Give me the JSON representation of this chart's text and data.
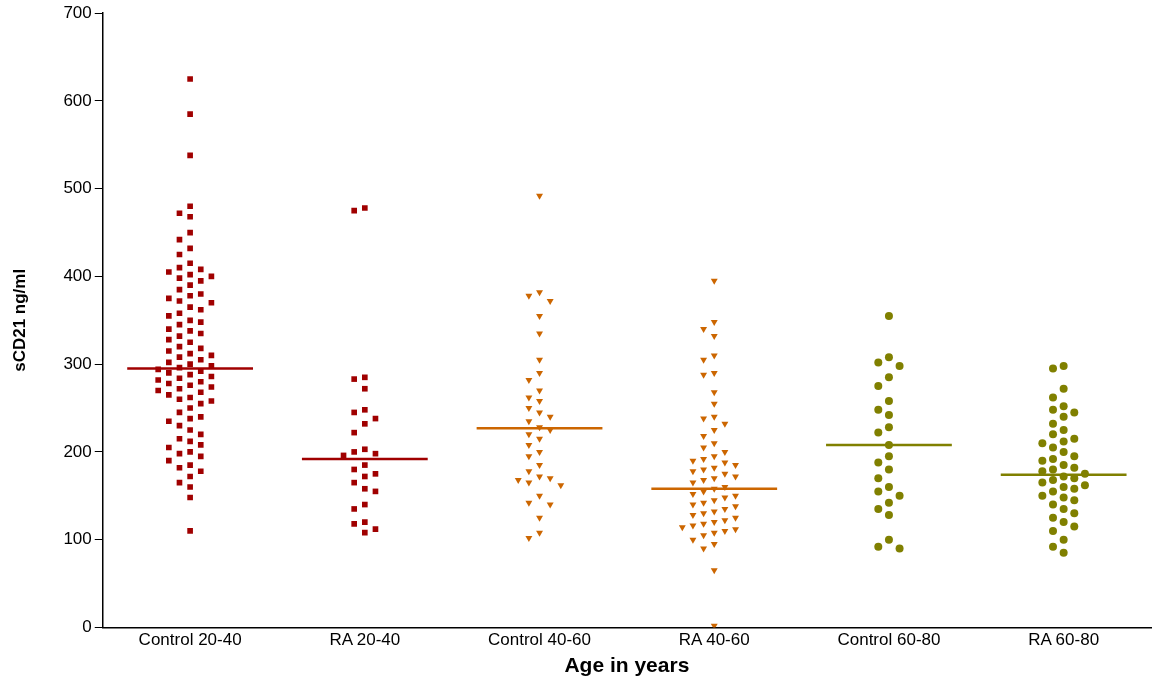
{
  "chart_data": {
    "type": "scatter",
    "xlabel": "Age in years",
    "ylabel": "sCD21 ng/ml",
    "categories": [
      "Control 20-40",
      "RA 20-40",
      "Control 40-60",
      "RA 40-60",
      "Control 60-80",
      "RA 60-80"
    ],
    "ylim": [
      0,
      700
    ],
    "yticks": [
      0,
      100,
      200,
      300,
      400,
      500,
      600,
      700
    ],
    "grid": false,
    "legend": false,
    "series": [
      {
        "color": "#a00000",
        "marker": "square",
        "x": [
          "Control 20-40",
          "Control 20-40",
          "Control 20-40",
          "Control 20-40",
          "Control 20-40",
          "Control 20-40",
          "Control 20-40",
          "Control 20-40",
          "Control 20-40",
          "Control 20-40",
          "Control 20-40",
          "Control 20-40",
          "Control 20-40",
          "Control 20-40",
          "Control 20-40",
          "Control 20-40",
          "Control 20-40",
          "Control 20-40",
          "Control 20-40",
          "Control 20-40",
          "Control 20-40",
          "Control 20-40",
          "Control 20-40",
          "Control 20-40",
          "Control 20-40",
          "Control 20-40",
          "Control 20-40",
          "Control 20-40",
          "Control 20-40",
          "Control 20-40",
          "Control 20-40",
          "Control 20-40",
          "Control 20-40",
          "Control 20-40",
          "Control 20-40",
          "Control 20-40",
          "Control 20-40",
          "Control 20-40",
          "Control 20-40",
          "Control 20-40",
          "Control 20-40",
          "Control 20-40",
          "Control 20-40",
          "Control 20-40",
          "Control 20-40",
          "Control 20-40",
          "Control 20-40",
          "Control 20-40",
          "Control 20-40",
          "Control 20-40",
          "Control 20-40",
          "Control 20-40",
          "Control 20-40",
          "Control 20-40",
          "Control 20-40",
          "Control 20-40",
          "Control 20-40",
          "Control 20-40",
          "Control 20-40",
          "Control 20-40",
          "Control 20-40",
          "Control 20-40",
          "Control 20-40",
          "Control 20-40",
          "Control 20-40",
          "Control 20-40",
          "Control 20-40",
          "Control 20-40",
          "Control 20-40",
          "Control 20-40",
          "Control 20-40",
          "Control 20-40",
          "Control 20-40",
          "Control 20-40",
          "Control 20-40",
          "Control 20-40",
          "Control 20-40",
          "Control 20-40",
          "Control 20-40",
          "Control 20-40",
          "Control 20-40",
          "Control 20-40",
          "Control 20-40",
          "Control 20-40",
          "Control 20-40",
          "Control 20-40",
          "Control 20-40",
          "Control 20-40",
          "Control 20-40",
          "Control 20-40",
          "Control 20-40",
          "Control 20-40"
        ],
        "values": [
          625,
          585,
          538,
          480,
          472,
          468,
          450,
          442,
          432,
          425,
          415,
          410,
          408,
          405,
          402,
          400,
          398,
          395,
          390,
          385,
          380,
          378,
          375,
          372,
          370,
          365,
          362,
          358,
          355,
          350,
          348,
          345,
          340,
          338,
          335,
          332,
          328,
          325,
          320,
          318,
          315,
          312,
          310,
          308,
          305,
          302,
          300,
          298,
          296,
          294,
          292,
          290,
          288,
          286,
          284,
          282,
          280,
          278,
          276,
          274,
          272,
          270,
          268,
          265,
          262,
          260,
          258,
          255,
          250,
          245,
          240,
          238,
          235,
          230,
          225,
          220,
          215,
          212,
          208,
          205,
          200,
          198,
          195,
          190,
          185,
          182,
          178,
          172,
          165,
          160,
          148,
          110
        ]
      },
      {
        "color": "#a00000",
        "marker": "square",
        "x": [
          "RA 20-40",
          "RA 20-40",
          "RA 20-40",
          "RA 20-40",
          "RA 20-40",
          "RA 20-40",
          "RA 20-40",
          "RA 20-40",
          "RA 20-40",
          "RA 20-40",
          "RA 20-40",
          "RA 20-40",
          "RA 20-40",
          "RA 20-40",
          "RA 20-40",
          "RA 20-40",
          "RA 20-40",
          "RA 20-40",
          "RA 20-40",
          "RA 20-40",
          "RA 20-40",
          "RA 20-40",
          "RA 20-40",
          "RA 20-40",
          "RA 20-40",
          "RA 20-40",
          "RA 20-40"
        ],
        "values": [
          478,
          475,
          285,
          283,
          272,
          248,
          245,
          238,
          232,
          222,
          203,
          200,
          198,
          196,
          185,
          180,
          175,
          172,
          165,
          158,
          155,
          140,
          135,
          120,
          118,
          112,
          108
        ]
      },
      {
        "color": "#cc6600",
        "marker": "triangle",
        "x": [
          "Control 40-60",
          "Control 40-60",
          "Control 40-60",
          "Control 40-60",
          "Control 40-60",
          "Control 40-60",
          "Control 40-60",
          "Control 40-60",
          "Control 40-60",
          "Control 40-60",
          "Control 40-60",
          "Control 40-60",
          "Control 40-60",
          "Control 40-60",
          "Control 40-60",
          "Control 40-60",
          "Control 40-60",
          "Control 40-60",
          "Control 40-60",
          "Control 40-60",
          "Control 40-60",
          "Control 40-60",
          "Control 40-60",
          "Control 40-60",
          "Control 40-60",
          "Control 40-60",
          "Control 40-60",
          "Control 40-60",
          "Control 40-60",
          "Control 40-60",
          "Control 40-60",
          "Control 40-60",
          "Control 40-60",
          "Control 40-60",
          "Control 40-60",
          "Control 40-60"
        ],
        "values": [
          492,
          382,
          378,
          372,
          355,
          335,
          305,
          290,
          282,
          270,
          262,
          258,
          250,
          245,
          240,
          235,
          228,
          225,
          220,
          215,
          208,
          200,
          195,
          185,
          178,
          172,
          170,
          168,
          165,
          162,
          150,
          142,
          140,
          125,
          108,
          102
        ]
      },
      {
        "color": "#cc6600",
        "marker": "triangle",
        "x": [
          "RA 40-60",
          "RA 40-60",
          "RA 40-60",
          "RA 40-60",
          "RA 40-60",
          "RA 40-60",
          "RA 40-60",
          "RA 40-60",
          "RA 40-60",
          "RA 40-60",
          "RA 40-60",
          "RA 40-60",
          "RA 40-60",
          "RA 40-60",
          "RA 40-60",
          "RA 40-60",
          "RA 40-60",
          "RA 40-60",
          "RA 40-60",
          "RA 40-60",
          "RA 40-60",
          "RA 40-60",
          "RA 40-60",
          "RA 40-60",
          "RA 40-60",
          "RA 40-60",
          "RA 40-60",
          "RA 40-60",
          "RA 40-60",
          "RA 40-60",
          "RA 40-60",
          "RA 40-60",
          "RA 40-60",
          "RA 40-60",
          "RA 40-60",
          "RA 40-60",
          "RA 40-60",
          "RA 40-60",
          "RA 40-60",
          "RA 40-60",
          "RA 40-60",
          "RA 40-60",
          "RA 40-60",
          "RA 40-60",
          "RA 40-60",
          "RA 40-60",
          "RA 40-60",
          "RA 40-60",
          "RA 40-60",
          "RA 40-60",
          "RA 40-60",
          "RA 40-60",
          "RA 40-60",
          "RA 40-60",
          "RA 40-60",
          "RA 40-60",
          "RA 40-60",
          "RA 40-60",
          "RA 40-60",
          "RA 40-60"
        ],
        "values": [
          395,
          348,
          340,
          332,
          310,
          305,
          290,
          288,
          268,
          255,
          240,
          238,
          232,
          225,
          218,
          210,
          205,
          200,
          195,
          192,
          190,
          188,
          185,
          182,
          180,
          178,
          175,
          172,
          170,
          168,
          165,
          160,
          158,
          155,
          152,
          150,
          148,
          145,
          142,
          140,
          138,
          135,
          132,
          130,
          128,
          125,
          122,
          120,
          118,
          116,
          114,
          112,
          110,
          108,
          105,
          100,
          95,
          90,
          65,
          2
        ]
      },
      {
        "color": "#808000",
        "marker": "circle",
        "x": [
          "Control 60-80",
          "Control 60-80",
          "Control 60-80",
          "Control 60-80",
          "Control 60-80",
          "Control 60-80",
          "Control 60-80",
          "Control 60-80",
          "Control 60-80",
          "Control 60-80",
          "Control 60-80",
          "Control 60-80",
          "Control 60-80",
          "Control 60-80",
          "Control 60-80",
          "Control 60-80",
          "Control 60-80",
          "Control 60-80",
          "Control 60-80",
          "Control 60-80",
          "Control 60-80",
          "Control 60-80",
          "Control 60-80",
          "Control 60-80",
          "Control 60-80"
        ],
        "values": [
          355,
          308,
          302,
          298,
          285,
          275,
          258,
          248,
          242,
          228,
          222,
          208,
          195,
          188,
          180,
          170,
          160,
          155,
          150,
          142,
          135,
          128,
          100,
          92,
          90
        ]
      },
      {
        "color": "#808000",
        "marker": "circle",
        "x": [
          "RA 60-80",
          "RA 60-80",
          "RA 60-80",
          "RA 60-80",
          "RA 60-80",
          "RA 60-80",
          "RA 60-80",
          "RA 60-80",
          "RA 60-80",
          "RA 60-80",
          "RA 60-80",
          "RA 60-80",
          "RA 60-80",
          "RA 60-80",
          "RA 60-80",
          "RA 60-80",
          "RA 60-80",
          "RA 60-80",
          "RA 60-80",
          "RA 60-80",
          "RA 60-80",
          "RA 60-80",
          "RA 60-80",
          "RA 60-80",
          "RA 60-80",
          "RA 60-80",
          "RA 60-80",
          "RA 60-80",
          "RA 60-80",
          "RA 60-80",
          "RA 60-80",
          "RA 60-80",
          "RA 60-80",
          "RA 60-80",
          "RA 60-80",
          "RA 60-80",
          "RA 60-80",
          "RA 60-80",
          "RA 60-80",
          "RA 60-80",
          "RA 60-80",
          "RA 60-80",
          "RA 60-80",
          "RA 60-80",
          "RA 60-80"
        ],
        "values": [
          298,
          295,
          272,
          262,
          252,
          248,
          245,
          240,
          232,
          225,
          220,
          215,
          212,
          210,
          205,
          200,
          195,
          192,
          190,
          185,
          182,
          180,
          178,
          175,
          172,
          170,
          168,
          165,
          162,
          160,
          158,
          155,
          150,
          148,
          145,
          140,
          135,
          130,
          125,
          120,
          115,
          110,
          100,
          92,
          85
        ]
      },
      {
        "type": "box",
        "color": "#a00000",
        "boxes": [
          {
            "low": 295,
            "q1": 295,
            "median": 295,
            "q3": 295,
            "high": 295
          },
          {
            "low": 192,
            "q1": 192,
            "median": 192,
            "q3": 192,
            "high": 192
          },
          null,
          null,
          null,
          null
        ]
      },
      {
        "type": "box",
        "color": "#cc6600",
        "boxes": [
          null,
          null,
          {
            "low": 227,
            "q1": 227,
            "median": 227,
            "q3": 227,
            "high": 227
          },
          {
            "low": 158,
            "q1": 158,
            "median": 158,
            "q3": 158,
            "high": 158
          },
          null,
          null
        ]
      },
      {
        "type": "box",
        "color": "#808000",
        "boxes": [
          null,
          null,
          null,
          null,
          {
            "low": 208,
            "q1": 208,
            "median": 208,
            "q3": 208,
            "high": 208
          },
          {
            "low": 174,
            "q1": 174,
            "median": 174,
            "q3": 174,
            "high": 174
          }
        ]
      }
    ]
  }
}
